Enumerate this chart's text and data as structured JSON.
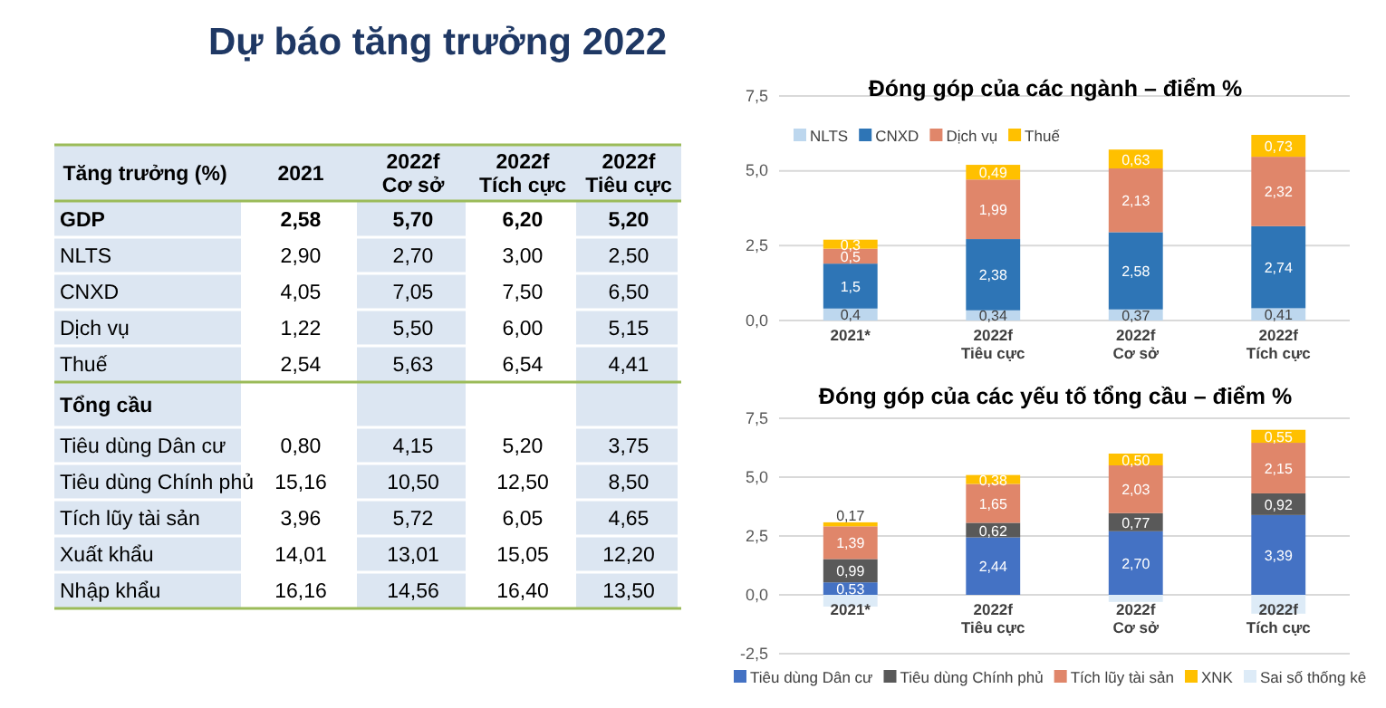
{
  "chart_data": [
    {
      "type": "other",
      "title": "Dự báo tăng trưởng 2022",
      "categories": [
        "Tăng trưởng (%)",
        "2021",
        "2022f\nCơ sở",
        "2022f\nTích cực",
        "2022f\nTiêu cực"
      ],
      "y_categories": [
        "GDP",
        "NLTS",
        "CNXD",
        "Dịch vụ",
        "Thuế",
        "Tổng cầu",
        "Tiêu dùng Dân cư",
        "Tiêu dùng Chính phủ",
        "Tích lũy tài sản",
        "Xuất khẩu",
        "Nhập khẩu"
      ],
      "cell_labels": [
        [
          "2,58",
          "5,70",
          "6,20",
          "5,20"
        ],
        [
          "2,90",
          "2,70",
          "3,00",
          "2,50"
        ],
        [
          "4,05",
          "7,05",
          "7,50",
          "6,50"
        ],
        [
          "1,22",
          "5,50",
          "6,00",
          "5,15"
        ],
        [
          "2,54",
          "5,63",
          "6,54",
          "4,41"
        ],
        [
          null,
          null,
          null,
          null
        ],
        [
          "0,80",
          "4,15",
          "5,20",
          "3,75"
        ],
        [
          "15,16",
          "10,50",
          "12,50",
          "8,50"
        ],
        [
          "3,96",
          "5,72",
          "6,05",
          "4,65"
        ],
        [
          "14,01",
          "13,01",
          "15,05",
          "12,20"
        ],
        [
          "16,16",
          "14,56",
          "16,40",
          "13,50"
        ]
      ]
    },
    {
      "type": "bar",
      "title": "Đóng góp của các ngành – điểm %",
      "stacked": true,
      "categories": [
        "2021*",
        "2022f\nTiêu cực",
        "2022f\nCơ sở",
        "2022f\nTích cực"
      ],
      "series": [
        {
          "name": "NLTS",
          "color": "#bdd7ee",
          "values": [
            0.4,
            0.34,
            0.37,
            0.41
          ],
          "value_labels": [
            "0,4",
            "0,34",
            "0,37",
            "0,41"
          ]
        },
        {
          "name": "CNXD",
          "color": "#2e75b6",
          "values": [
            1.5,
            2.38,
            2.58,
            2.74
          ],
          "value_labels": [
            "1,5",
            "2,38",
            "2,58",
            "2,74"
          ]
        },
        {
          "name": "Dịch vụ",
          "color": "#e0866a",
          "values": [
            0.5,
            1.99,
            2.13,
            2.32
          ],
          "value_labels": [
            "0,5",
            "1,99",
            "2,13",
            "2,32"
          ]
        },
        {
          "name": "Thuế",
          "color": "#ffc000",
          "values": [
            0.3,
            0.49,
            0.63,
            0.73
          ],
          "value_labels": [
            "0,3",
            "0,49",
            "0,63",
            "0,73"
          ]
        }
      ],
      "ylim": [
        0,
        7.5
      ],
      "yticks": [
        {
          "value": 0,
          "label": "0,0"
        },
        {
          "value": 2.5,
          "label": "2,5"
        },
        {
          "value": 5,
          "label": "5,0"
        },
        {
          "value": 7.5,
          "label": "7,5"
        }
      ],
      "grid": "y",
      "legend": "top left"
    },
    {
      "type": "bar",
      "title": "Đóng góp của các yếu tố tổng cầu – điểm %",
      "stacked": true,
      "categories": [
        "2021*",
        "2022f\nTiêu cực",
        "2022f\nCơ sở",
        "2022f\nTích cực"
      ],
      "series": [
        {
          "name": "Tiêu dùng Dân cư",
          "color": "#4472c4",
          "values": [
            0.53,
            2.44,
            2.7,
            3.39
          ],
          "value_labels": [
            "0,53",
            "2,44",
            "2,70",
            "3,39"
          ]
        },
        {
          "name": "Tiêu dùng Chính phủ",
          "color": "#595959",
          "values": [
            0.99,
            0.62,
            0.77,
            0.92
          ],
          "value_labels": [
            "0,99",
            "0,62",
            "0,77",
            "0,92"
          ]
        },
        {
          "name": "Tích lũy tài sản",
          "color": "#e0866a",
          "values": [
            1.39,
            1.65,
            2.03,
            2.15
          ],
          "value_labels": [
            "1,39",
            "1,65",
            "2,03",
            "2,15"
          ]
        },
        {
          "name": "XNK",
          "color": "#ffc000",
          "values": [
            0.17,
            0.38,
            0.5,
            0.55
          ],
          "value_labels": [
            "0,17",
            "0,38",
            "0,50",
            "0,55"
          ]
        },
        {
          "name": "Sai số thống kê",
          "color": "#ddebf7",
          "values": [
            -0.5,
            null,
            -0.3,
            -0.8
          ]
        }
      ],
      "ylim": [
        -2.5,
        7.5
      ],
      "yticks": [
        {
          "value": -2.5,
          "label": "-2,5"
        },
        {
          "value": 0,
          "label": "0,0"
        },
        {
          "value": 2.5,
          "label": "2,5"
        },
        {
          "value": 5,
          "label": "5,0"
        },
        {
          "value": 7.5,
          "label": "7,5"
        }
      ],
      "grid": "y",
      "legend": "bottom"
    }
  ]
}
